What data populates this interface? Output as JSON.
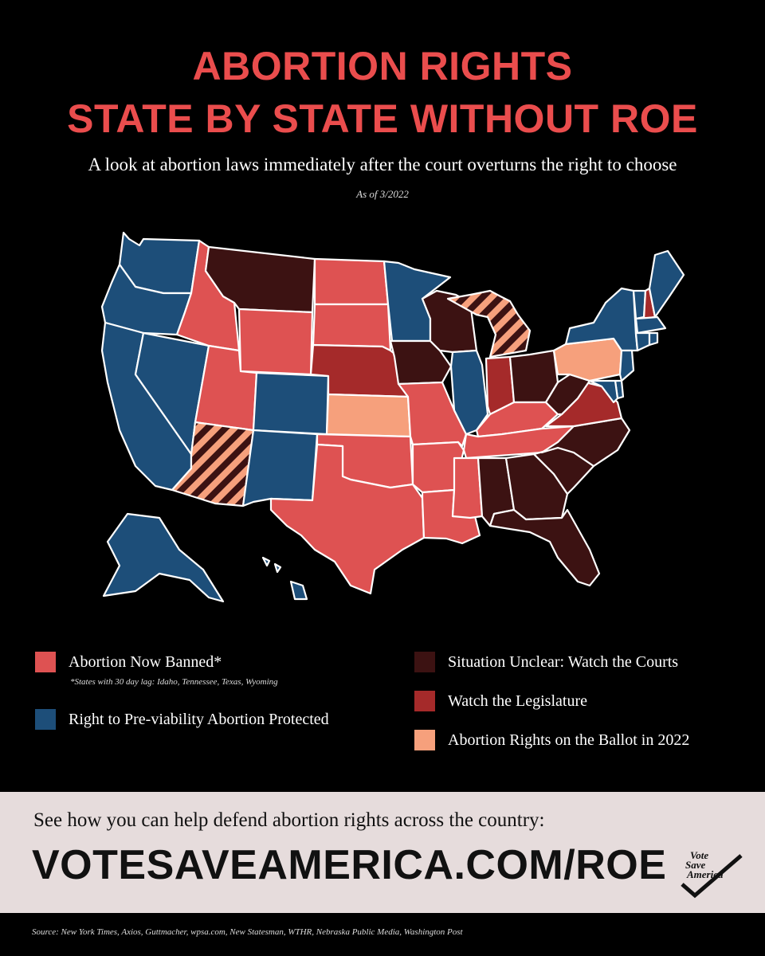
{
  "title": {
    "line1": "ABORTION RIGHTS",
    "line2": "STATE BY STATE WITHOUT ROE"
  },
  "subtitle": "A look at abortion laws immediately after the court overturns the right to choose",
  "as_of": "As of 3/2022",
  "colors": {
    "banned": "#de5252",
    "protected": "#1d4e79",
    "unclear": "#3c1212",
    "legislature": "#a52a2a",
    "ballot": "#f6a07c",
    "title_red": "#ea4d4d"
  },
  "legend": {
    "banned": "Abortion Now Banned*",
    "banned_note": "*States with 30 day lag: Idaho,  Tennessee, Texas, Wyoming",
    "protected": "Right to Pre-viability Abortion Protected",
    "unclear": "Situation Unclear: Watch the Courts",
    "legislature": "Watch the Legislature",
    "ballot": "Abortion Rights on the Ballot in 2022"
  },
  "map": {
    "states": {
      "WA": "protected",
      "OR": "protected",
      "CA": "protected",
      "NV": "protected",
      "CO": "protected",
      "NM": "protected",
      "MN": "protected",
      "IL": "protected",
      "NY": "protected",
      "VT": "protected",
      "ME": "protected",
      "NJ": "protected",
      "MD": "protected",
      "DE": "protected",
      "MA": "protected",
      "CT": "protected",
      "RI": "protected",
      "AK": "protected",
      "HI": "protected",
      "ID": "banned",
      "UT": "banned",
      "WY": "banned",
      "ND": "banned",
      "SD": "banned",
      "OK": "banned",
      "TX": "banned",
      "MO": "banned",
      "AR": "banned",
      "LA": "banned",
      "MS": "banned",
      "KY": "banned",
      "TN": "banned",
      "MT": "unclear",
      "IA": "unclear",
      "WI": "unclear",
      "OH": "unclear",
      "WV": "unclear",
      "NC": "unclear",
      "SC": "unclear",
      "GA": "unclear",
      "AL": "unclear",
      "FL": "unclear",
      "NE": "legislature",
      "IN": "legislature",
      "VA": "legislature",
      "NH": "legislature",
      "KS": "ballot",
      "PA": "ballot",
      "AZ": "unclear-ballot-striped",
      "MI": "unclear-ballot-striped"
    }
  },
  "cta": {
    "text": "See how you can help defend abortion rights across the country:",
    "url": "VOTESAVEAMERICA.COM/ROE",
    "logo": [
      "Vote",
      "Save",
      "America"
    ]
  },
  "source": "Source: New York Times, Axios, Guttmacher, wpsa.com, New Statesman, WTHR, Nebraska Public Media, Washington Post"
}
